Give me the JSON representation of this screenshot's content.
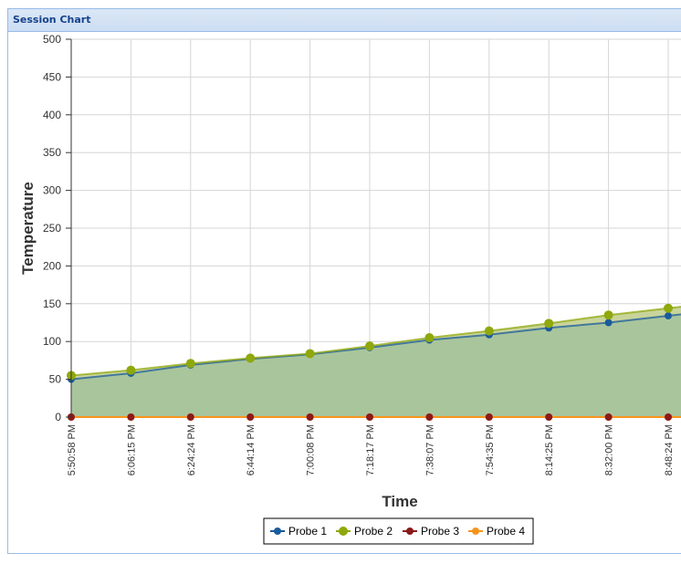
{
  "window": {
    "title": "Session Chart"
  },
  "chart_data": {
    "type": "area",
    "xlabel": "Time",
    "ylabel": "Temperature",
    "ylim": [
      0,
      500
    ],
    "yticks": [
      0,
      50,
      100,
      150,
      200,
      250,
      300,
      350,
      400,
      450,
      500
    ],
    "grid": true,
    "legend_position": "bottom",
    "categories": [
      "5:50:58 PM",
      "6:06:15 PM",
      "6:24:24 PM",
      "6:44:14 PM",
      "7:00:08 PM",
      "7:18:17 PM",
      "7:38:07 PM",
      "7:54:35 PM",
      "8:14:25 PM",
      "8:32:00 PM",
      "8:48:24 PM"
    ],
    "series": [
      {
        "name": "Probe 1",
        "color": "#1a5b9a",
        "values": [
          50,
          58,
          69,
          77,
          83,
          92,
          102,
          109,
          118,
          125,
          134
        ]
      },
      {
        "name": "Probe 2",
        "color": "#8fa80c",
        "values": [
          55,
          62,
          71,
          78,
          84,
          94,
          105,
          114,
          124,
          135,
          144
        ]
      },
      {
        "name": "Probe 3",
        "color": "#8b1a1a",
        "values": [
          0,
          0,
          0,
          0,
          0,
          0,
          0,
          0,
          0,
          0,
          0
        ]
      },
      {
        "name": "Probe 4",
        "color": "#f7941d",
        "values": [
          0,
          0,
          0,
          0,
          0,
          0,
          0,
          0,
          0,
          0,
          0
        ]
      }
    ],
    "fill_color": "#a9c59c"
  }
}
